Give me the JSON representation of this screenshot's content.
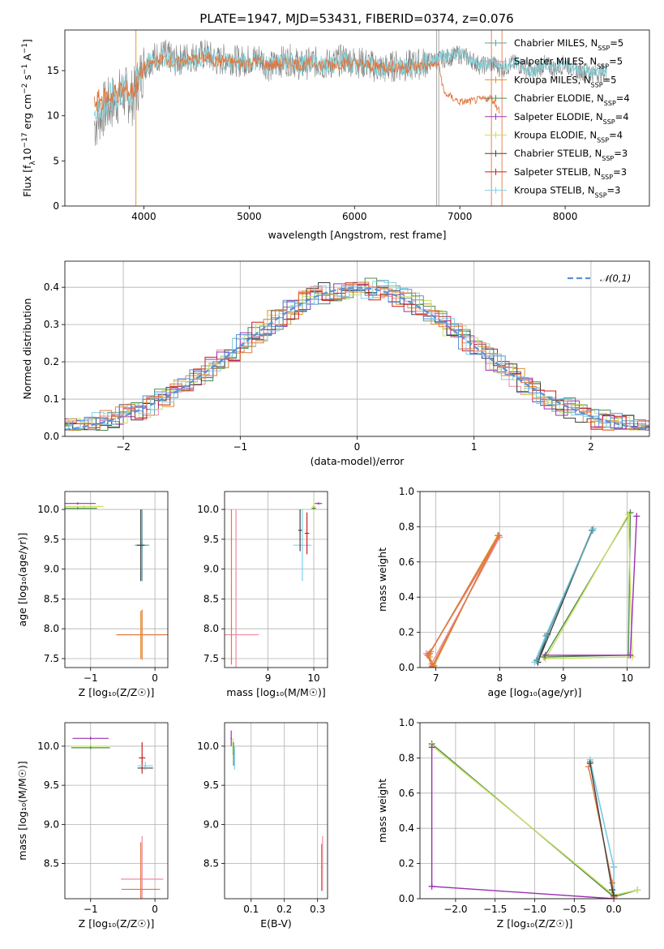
{
  "title": "PLATE=1947, MJD=53431, FIBERID=0374, z=0.076",
  "palette": {
    "Chabrier MILES": "#5fa0a8",
    "Salpeter MILES": "#f08aa0",
    "Kroupa MILES": "#e0902a",
    "Chabrier ELODIE": "#4f8a4f",
    "Salpeter ELODIE": "#9b30b0",
    "Kroupa ELODIE": "#c8e060",
    "Chabrier STELIB": "#404040",
    "Salpeter STELIB": "#c81e1e",
    "Kroupa STELIB": "#7fd0ea",
    "spectrum_data": "#808080",
    "spectrum_model_a": "#7fd0d8",
    "spectrum_model_b": "#e07840",
    "normal_curve": "#5b8fd8",
    "hist_blue": "#5b8fd8",
    "hist_orange": "#e07840"
  },
  "chart_data": [
    {
      "id": "spectrum",
      "type": "line",
      "xlabel": "wavelength [Angstrom, rest frame]",
      "ylabel_parts": [
        "Flux [f",
        "λ",
        "10",
        "−17",
        " erg cm",
        "−2",
        " s",
        "−1",
        " A",
        "−1",
        "]"
      ],
      "xlim": [
        3250,
        8800
      ],
      "ylim": [
        0,
        19.5
      ],
      "xticks": [
        4000,
        5000,
        6000,
        7000,
        8000
      ],
      "yticks": [
        0,
        5,
        10,
        15
      ],
      "grid": false,
      "legend_placement": "top-right",
      "legend": [
        {
          "base": "Chabrier MILES, N",
          "sub": "SSP",
          "tail": "=5"
        },
        {
          "base": "Salpeter MILES, N",
          "sub": "SSP",
          "tail": "=5"
        },
        {
          "base": "Kroupa MILES, N",
          "sub": "SSP",
          "tail": "=5"
        },
        {
          "base": "Chabrier ELODIE, N",
          "sub": "SSP",
          "tail": "=4"
        },
        {
          "base": "Salpeter ELODIE, N",
          "sub": "SSP",
          "tail": "=4"
        },
        {
          "base": "Kroupa ELODIE, N",
          "sub": "SSP",
          "tail": "=4"
        },
        {
          "base": "Chabrier STELIB, N",
          "sub": "SSP",
          "tail": "=3"
        },
        {
          "base": "Salpeter STELIB, N",
          "sub": "SSP",
          "tail": "=3"
        },
        {
          "base": "Kroupa STELIB, N",
          "sub": "SSP",
          "tail": "=3"
        }
      ],
      "series": [
        {
          "key": "spectrum_data",
          "x": [
            3530,
            3600,
            3700,
            3800,
            3900,
            4000,
            4100,
            4200,
            4300,
            4400,
            4500,
            4600,
            4700,
            4800,
            4900,
            5000,
            5100,
            5200,
            5300,
            5400,
            5500,
            5600,
            5700,
            5800,
            5900,
            6000,
            6100,
            6200,
            6300,
            6400,
            6500,
            6600,
            6700,
            6800,
            6900,
            7000,
            7100,
            7200,
            7300,
            7400,
            7500,
            7600,
            7700,
            7800,
            7900,
            8000,
            8100,
            8200,
            8300,
            8400
          ],
          "y": [
            9.0,
            10.5,
            11.5,
            12.5,
            12.0,
            15.5,
            16.5,
            16.8,
            16.0,
            16.5,
            16.6,
            16.8,
            16.0,
            16.4,
            16.0,
            16.2,
            16.4,
            15.4,
            16.0,
            16.2,
            15.5,
            16.0,
            15.7,
            15.8,
            16.3,
            16.0,
            15.8,
            15.4,
            15.2,
            15.6,
            15.5,
            15.7,
            16.0,
            16.2,
            16.5,
            16.8,
            16.3,
            15.5,
            15.8,
            15.2,
            15.8,
            15.5,
            14.7,
            15.7,
            15.2,
            15.8,
            15.0,
            14.9,
            14.7,
            14.8
          ]
        },
        {
          "key": "spectrum_model_a",
          "x": [
            3530,
            3600,
            3700,
            3800,
            3900,
            4000,
            4100,
            4200,
            4300,
            4400,
            4500,
            4600,
            4700,
            4800,
            4900,
            5000,
            5100,
            5200,
            5300,
            5400,
            5500,
            5600,
            5700,
            5800,
            5900,
            6000,
            6100,
            6200,
            6300,
            6400,
            6500,
            6600,
            6700,
            6800,
            6900,
            7000,
            7100,
            7200,
            7300,
            7400,
            7500,
            7600,
            7700,
            7800,
            7900,
            8000,
            8100,
            8200,
            8300,
            8400
          ],
          "y": [
            10.5,
            11.0,
            12.0,
            12.8,
            12.5,
            15.5,
            16.2,
            16.5,
            15.8,
            16.3,
            16.4,
            16.6,
            16.1,
            16.2,
            15.9,
            16.0,
            16.1,
            15.4,
            15.9,
            16.0,
            15.6,
            15.9,
            15.6,
            15.7,
            16.1,
            15.9,
            15.7,
            15.5,
            15.3,
            15.5,
            15.4,
            15.6,
            16.0,
            16.4,
            16.8,
            17.0,
            16.3,
            15.6,
            15.9,
            15.3,
            15.9,
            15.5,
            14.8,
            15.8,
            15.3,
            15.8,
            15.0,
            15.0,
            14.8,
            14.9
          ]
        },
        {
          "key": "spectrum_model_b",
          "x": [
            3530,
            3600,
            3700,
            3800,
            3900,
            4000,
            4100,
            4200,
            4300,
            4400,
            4500,
            4600,
            4700,
            4800,
            4900,
            5000,
            5100,
            5200,
            5300,
            5400,
            5500,
            5600,
            5700,
            5800,
            5900,
            6000,
            6100,
            6200,
            6300,
            6400,
            6500,
            6600,
            6700,
            6800,
            6850,
            6900,
            7000,
            7100,
            7200,
            7300,
            7380
          ],
          "y": [
            11.5,
            11.8,
            12.3,
            12.8,
            12.6,
            15.3,
            16.0,
            16.3,
            15.7,
            16.2,
            16.3,
            16.5,
            16.0,
            16.1,
            15.8,
            15.9,
            16.0,
            15.5,
            15.8,
            15.9,
            15.6,
            15.8,
            15.6,
            15.7,
            15.9,
            15.8,
            15.6,
            15.5,
            15.4,
            15.4,
            15.4,
            15.5,
            15.6,
            15.7,
            12.5,
            12.2,
            11.5,
            11.6,
            11.8,
            12.0,
            10.5
          ]
        }
      ],
      "vlines": [
        3925,
        6780,
        6800,
        7300,
        7400
      ]
    },
    {
      "id": "residuals",
      "type": "histogram",
      "xlabel": "(data-model)/error",
      "ylabel": "Normed distribution",
      "xlim": [
        -2.5,
        2.5
      ],
      "ylim": [
        0,
        0.47
      ],
      "xticks": [
        -2,
        -1,
        0,
        1,
        2
      ],
      "yticks": [
        0.0,
        0.1,
        0.2,
        0.3,
        0.4
      ],
      "grid": true,
      "legend_placement": "top-right",
      "legend_label": "𝒩(0,1)",
      "bin_width": 0.1,
      "normal_mean": 0,
      "normal_sigma": 1
    },
    {
      "id": "age_vs_Z",
      "type": "scatter",
      "xlabel": "Z [log₁₀(Z/Z☉)]",
      "ylabel": "age  [log₁₀(age/yr)]",
      "xlim": [
        -1.4,
        0.2
      ],
      "ylim": [
        7.35,
        10.3
      ],
      "xticks": [
        -1,
        0
      ],
      "yticks": [
        7.5,
        8.0,
        8.5,
        9.0,
        9.5,
        10.0
      ],
      "grid": true,
      "points": [
        {
          "key": "Salpeter ELODIE",
          "x": -1.2,
          "y": 10.1,
          "xerr": 0.28,
          "yerr": 0.02
        },
        {
          "key": "Kroupa ELODIE",
          "x": -1.1,
          "y": 10.05,
          "xerr": 0.3,
          "yerr": 0.02
        },
        {
          "key": "Chabrier ELODIE",
          "x": -1.2,
          "y": 10.02,
          "xerr": 0.3,
          "yerr": 0.02
        },
        {
          "key": "Kroupa STELIB",
          "x": -0.2,
          "y": 9.4,
          "xerr": 0.12,
          "yerr": 0.05
        },
        {
          "key": "Chabrier MILES",
          "x": -0.2,
          "y": 9.4,
          "xerr": 0.1,
          "yerr": 0.6
        },
        {
          "key": "Chabrier STELIB",
          "x": -0.22,
          "y": 9.4,
          "xerr": 0.06,
          "yerr": 0.6
        },
        {
          "key": "Kroupa MILES",
          "x": -0.22,
          "y": 7.9,
          "xerr": 0.38,
          "yerr": 0.4
        },
        {
          "key": "spectrum_model_b",
          "x": -0.2,
          "y": 7.9,
          "xerr": 0.4,
          "yerr": 0.42
        }
      ]
    },
    {
      "id": "age_vs_mass",
      "type": "scatter",
      "xlabel": "mass [log₁₀(M/M☉)]",
      "ylabel": "",
      "xlim": [
        8.05,
        10.3
      ],
      "ylim": [
        7.35,
        10.3
      ],
      "xticks": [
        9,
        10
      ],
      "yticks": [
        7.5,
        8.0,
        8.5,
        9.0,
        9.5,
        10.0
      ],
      "grid": true,
      "points": [
        {
          "key": "Salpeter ELODIE",
          "x": 10.1,
          "y": 10.1,
          "xerr": 0.08,
          "yerr": 0.02
        },
        {
          "key": "Kroupa ELODIE",
          "x": 10.0,
          "y": 10.05,
          "xerr": 0.04,
          "yerr": 0.1
        },
        {
          "key": "Chabrier ELODIE",
          "x": 10.0,
          "y": 10.02,
          "xerr": 0.05,
          "yerr": 0.02
        },
        {
          "key": "Kroupa STELIB",
          "x": 9.75,
          "y": 9.4,
          "xerr": 0.2,
          "yerr": 0.6
        },
        {
          "key": "Salpeter STELIB",
          "x": 9.85,
          "y": 9.6,
          "xerr": 0.05,
          "yerr": 0.35
        },
        {
          "key": "Chabrier STELIB",
          "x": 9.7,
          "y": 9.65,
          "xerr": 0.04,
          "yerr": 0.35
        },
        {
          "key": "Salpeter MILES",
          "x": 8.3,
          "y": 7.9,
          "xerr": 0.5,
          "yerr": 2.1
        },
        {
          "key": "spectrum_model_b",
          "x": 8.2,
          "y": 8.7,
          "xerr": 0.01,
          "yerr": 1.3
        }
      ]
    },
    {
      "id": "mass_weight_vs_age",
      "type": "line",
      "xlabel": "age  [log₁₀(age/yr)]",
      "ylabel": "mass weight",
      "xlim": [
        6.75,
        10.35
      ],
      "ylim": [
        0,
        1.0
      ],
      "xticks": [
        7,
        8,
        9,
        10
      ],
      "yticks": [
        0.0,
        0.2,
        0.4,
        0.6,
        0.8,
        1.0
      ],
      "grid": true,
      "series": [
        {
          "key": "Chabrier MILES",
          "x": [
            6.88,
            6.95,
            7.98,
            6.9
          ],
          "y": [
            0.07,
            0.01,
            0.75,
            0.08
          ]
        },
        {
          "key": "Salpeter MILES",
          "x": [
            6.85,
            6.93,
            8.0,
            6.88
          ],
          "y": [
            0.08,
            0.02,
            0.74,
            0.07
          ]
        },
        {
          "key": "Kroupa MILES",
          "x": [
            6.9,
            6.97,
            7.97,
            6.92
          ],
          "y": [
            0.06,
            0.01,
            0.75,
            0.09
          ]
        },
        {
          "key": "spectrum_model_b",
          "x": [
            6.87,
            6.94,
            7.99,
            6.9
          ],
          "y": [
            0.07,
            0.005,
            0.75,
            0.08
          ]
        },
        {
          "key": "Chabrier STELIB",
          "x": [
            8.6,
            8.75,
            9.45,
            8.6
          ],
          "y": [
            0.03,
            0.19,
            0.78,
            0.03
          ]
        },
        {
          "key": "Kroupa STELIB",
          "x": [
            8.55,
            8.72,
            9.47,
            8.55
          ],
          "y": [
            0.03,
            0.18,
            0.79,
            0.03
          ]
        },
        {
          "key": "Chabrier MILES",
          "x": [
            8.58,
            8.74,
            9.46
          ],
          "y": [
            0.04,
            0.18,
            0.78
          ]
        },
        {
          "key": "Chabrier ELODIE",
          "x": [
            8.7,
            10.05,
            10.02,
            8.7
          ],
          "y": [
            0.06,
            0.88,
            0.07,
            0.06
          ]
        },
        {
          "key": "Kroupa ELODIE",
          "x": [
            8.72,
            10.02,
            10.08,
            8.72
          ],
          "y": [
            0.05,
            0.87,
            0.06,
            0.05
          ]
        },
        {
          "key": "Salpeter ELODIE",
          "x": [
            8.72,
            10.05,
            10.15
          ],
          "y": [
            0.07,
            0.07,
            0.86
          ]
        }
      ]
    },
    {
      "id": "mass_vs_Z",
      "type": "scatter",
      "xlabel": "Z [log₁₀(Z/Z☉)]",
      "ylabel": "mass [log₁₀(M/M☉)]",
      "xlim": [
        -1.4,
        0.2
      ],
      "ylim": [
        8.05,
        10.3
      ],
      "xticks": [
        -1,
        0
      ],
      "yticks": [
        8.5,
        9.0,
        9.5,
        10.0
      ],
      "grid": true,
      "points": [
        {
          "key": "Salpeter ELODIE",
          "x": -1.0,
          "y": 10.1,
          "xerr": 0.28,
          "yerr": 0.02
        },
        {
          "key": "Kroupa ELODIE",
          "x": -1.0,
          "y": 10.0,
          "xerr": 0.3,
          "yerr": 0.04
        },
        {
          "key": "Chabrier ELODIE",
          "x": -1.0,
          "y": 9.98,
          "xerr": 0.3,
          "yerr": 0.02
        },
        {
          "key": "Salpeter STELIB",
          "x": -0.2,
          "y": 9.85,
          "xerr": 0.05,
          "yerr": 0.2
        },
        {
          "key": "Chabrier STELIB",
          "x": -0.15,
          "y": 9.72,
          "xerr": 0.12,
          "yerr": 0.02
        },
        {
          "key": "Kroupa STELIB",
          "x": -0.15,
          "y": 9.75,
          "xerr": 0.12,
          "yerr": 0.05
        },
        {
          "key": "Salpeter MILES",
          "x": -0.2,
          "y": 8.3,
          "xerr": 0.33,
          "yerr": 0.55
        },
        {
          "key": "spectrum_model_b",
          "x": -0.22,
          "y": 8.17,
          "xerr": 0.3,
          "yerr": 0.6
        }
      ]
    },
    {
      "id": "mass_vs_EBV",
      "type": "scatter",
      "xlabel": "E(B-V)",
      "ylabel": "",
      "xlim": [
        0.02,
        0.33
      ],
      "ylim": [
        8.05,
        10.3
      ],
      "xticks": [
        0.1,
        0.2,
        0.3
      ],
      "yticks": [
        8.5,
        9.0,
        9.5,
        10.0
      ],
      "grid": true,
      "points": [
        {
          "key": "Salpeter ELODIE",
          "x": 0.04,
          "y": 10.1,
          "xerr": 0.002,
          "yerr": 0.1
        },
        {
          "key": "Kroupa ELODIE",
          "x": 0.045,
          "y": 10.0,
          "xerr": 0.002,
          "yerr": 0.1
        },
        {
          "key": "Chabrier ELODIE",
          "x": 0.047,
          "y": 9.9,
          "xerr": 0.002,
          "yerr": 0.15
        },
        {
          "key": "Kroupa STELIB",
          "x": 0.05,
          "y": 9.85,
          "xerr": 0.002,
          "yerr": 0.15
        },
        {
          "key": "Salpeter MILES",
          "x": 0.315,
          "y": 8.5,
          "xerr": 0.002,
          "yerr": 0.35
        },
        {
          "key": "spectrum_model_b",
          "x": 0.312,
          "y": 8.45,
          "xerr": 0.002,
          "yerr": 0.3
        }
      ]
    },
    {
      "id": "mass_weight_vs_Z",
      "type": "line",
      "xlabel": "Z [log₁₀(Z/Z☉)]",
      "ylabel": "mass weight",
      "xlim": [
        -2.45,
        0.45
      ],
      "ylim": [
        0,
        1.0
      ],
      "xticks": [
        -2.0,
        -1.5,
        -1.0,
        -0.5,
        0.0
      ],
      "yticks": [
        0.0,
        0.2,
        0.4,
        0.6,
        0.8,
        1.0
      ],
      "grid": true,
      "series": [
        {
          "key": "Chabrier ELODIE",
          "x": [
            -2.3,
            0.0,
            0.3
          ],
          "y": [
            0.88,
            0.01,
            0.05
          ]
        },
        {
          "key": "Kroupa ELODIE",
          "x": [
            -2.3,
            0.0,
            0.3
          ],
          "y": [
            0.87,
            0.02,
            0.05
          ]
        },
        {
          "key": "Salpeter ELODIE",
          "x": [
            -2.3,
            -2.3,
            0.0
          ],
          "y": [
            0.86,
            0.07,
            0.0
          ]
        },
        {
          "key": "Chabrier MILES",
          "x": [
            -0.3,
            0.0,
            0.0
          ],
          "y": [
            0.78,
            0.18,
            0.02
          ]
        },
        {
          "key": "Kroupa STELIB",
          "x": [
            -0.3,
            0.0,
            0.0
          ],
          "y": [
            0.79,
            0.18,
            0.01
          ]
        },
        {
          "key": "spectrum_model_b",
          "x": [
            -0.32,
            -0.02,
            0.0
          ],
          "y": [
            0.75,
            0.09,
            0.01
          ]
        },
        {
          "key": "Chabrier STELIB",
          "x": [
            -0.3,
            -0.02,
            0.0
          ],
          "y": [
            0.77,
            0.05,
            0.02
          ]
        }
      ]
    }
  ]
}
